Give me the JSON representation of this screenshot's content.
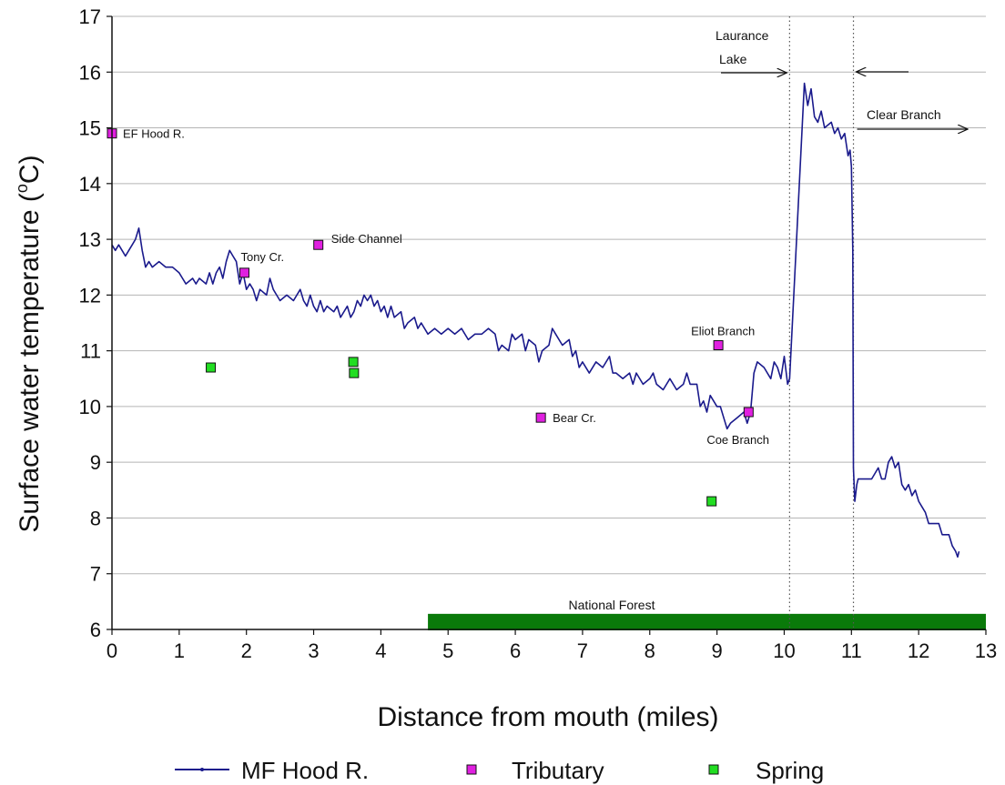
{
  "chart_data": {
    "type": "line",
    "title": "",
    "xlabel": "Distance from mouth (miles)",
    "ylabel": "Surface water temperature (",
    "ylabel_sup": "o",
    "ylabel_tail": "C)",
    "xlim": [
      0,
      13
    ],
    "ylim": [
      6,
      17
    ],
    "x_ticks": [
      0,
      1,
      2,
      3,
      4,
      5,
      6,
      7,
      8,
      9,
      10,
      11,
      12,
      13
    ],
    "y_ticks": [
      6,
      7,
      8,
      9,
      10,
      11,
      12,
      13,
      14,
      15,
      16,
      17
    ],
    "grid": "horizontal",
    "legend_position": "bottom",
    "series": [
      {
        "name": "MF Hood R.",
        "kind": "line",
        "color": "#1a1a8c",
        "points": [
          [
            0.0,
            12.9
          ],
          [
            0.05,
            12.8
          ],
          [
            0.1,
            12.9
          ],
          [
            0.15,
            12.8
          ],
          [
            0.2,
            12.7
          ],
          [
            0.25,
            12.8
          ],
          [
            0.3,
            12.9
          ],
          [
            0.35,
            13.0
          ],
          [
            0.4,
            13.2
          ],
          [
            0.45,
            12.8
          ],
          [
            0.5,
            12.5
          ],
          [
            0.55,
            12.6
          ],
          [
            0.6,
            12.5
          ],
          [
            0.7,
            12.6
          ],
          [
            0.8,
            12.5
          ],
          [
            0.9,
            12.5
          ],
          [
            1.0,
            12.4
          ],
          [
            1.05,
            12.3
          ],
          [
            1.1,
            12.2
          ],
          [
            1.2,
            12.3
          ],
          [
            1.25,
            12.2
          ],
          [
            1.3,
            12.3
          ],
          [
            1.4,
            12.2
          ],
          [
            1.45,
            12.4
          ],
          [
            1.5,
            12.2
          ],
          [
            1.55,
            12.4
          ],
          [
            1.6,
            12.5
          ],
          [
            1.65,
            12.3
          ],
          [
            1.7,
            12.6
          ],
          [
            1.75,
            12.8
          ],
          [
            1.8,
            12.7
          ],
          [
            1.85,
            12.6
          ],
          [
            1.9,
            12.2
          ],
          [
            1.95,
            12.4
          ],
          [
            2.0,
            12.1
          ],
          [
            2.05,
            12.2
          ],
          [
            2.1,
            12.1
          ],
          [
            2.15,
            11.9
          ],
          [
            2.2,
            12.1
          ],
          [
            2.3,
            12.0
          ],
          [
            2.35,
            12.3
          ],
          [
            2.4,
            12.1
          ],
          [
            2.45,
            12.0
          ],
          [
            2.5,
            11.9
          ],
          [
            2.6,
            12.0
          ],
          [
            2.7,
            11.9
          ],
          [
            2.8,
            12.1
          ],
          [
            2.85,
            11.9
          ],
          [
            2.9,
            11.8
          ],
          [
            2.95,
            12.0
          ],
          [
            3.0,
            11.8
          ],
          [
            3.05,
            11.7
          ],
          [
            3.1,
            11.9
          ],
          [
            3.15,
            11.7
          ],
          [
            3.2,
            11.8
          ],
          [
            3.3,
            11.7
          ],
          [
            3.35,
            11.8
          ],
          [
            3.4,
            11.6
          ],
          [
            3.5,
            11.8
          ],
          [
            3.55,
            11.6
          ],
          [
            3.6,
            11.7
          ],
          [
            3.65,
            11.9
          ],
          [
            3.7,
            11.8
          ],
          [
            3.75,
            12.0
          ],
          [
            3.8,
            11.9
          ],
          [
            3.85,
            12.0
          ],
          [
            3.9,
            11.8
          ],
          [
            3.95,
            11.9
          ],
          [
            4.0,
            11.7
          ],
          [
            4.05,
            11.8
          ],
          [
            4.1,
            11.6
          ],
          [
            4.15,
            11.8
          ],
          [
            4.2,
            11.6
          ],
          [
            4.3,
            11.7
          ],
          [
            4.35,
            11.4
          ],
          [
            4.4,
            11.5
          ],
          [
            4.5,
            11.6
          ],
          [
            4.55,
            11.4
          ],
          [
            4.6,
            11.5
          ],
          [
            4.7,
            11.3
          ],
          [
            4.8,
            11.4
          ],
          [
            4.9,
            11.3
          ],
          [
            5.0,
            11.4
          ],
          [
            5.1,
            11.3
          ],
          [
            5.2,
            11.4
          ],
          [
            5.3,
            11.2
          ],
          [
            5.4,
            11.3
          ],
          [
            5.5,
            11.3
          ],
          [
            5.6,
            11.4
          ],
          [
            5.7,
            11.3
          ],
          [
            5.75,
            11.0
          ],
          [
            5.8,
            11.1
          ],
          [
            5.9,
            11.0
          ],
          [
            5.95,
            11.3
          ],
          [
            6.0,
            11.2
          ],
          [
            6.1,
            11.3
          ],
          [
            6.15,
            11.0
          ],
          [
            6.2,
            11.2
          ],
          [
            6.3,
            11.1
          ],
          [
            6.35,
            10.8
          ],
          [
            6.4,
            11.0
          ],
          [
            6.5,
            11.1
          ],
          [
            6.55,
            11.4
          ],
          [
            6.6,
            11.3
          ],
          [
            6.7,
            11.1
          ],
          [
            6.8,
            11.2
          ],
          [
            6.85,
            10.9
          ],
          [
            6.9,
            11.0
          ],
          [
            6.95,
            10.7
          ],
          [
            7.0,
            10.8
          ],
          [
            7.1,
            10.6
          ],
          [
            7.2,
            10.8
          ],
          [
            7.3,
            10.7
          ],
          [
            7.4,
            10.9
          ],
          [
            7.45,
            10.6
          ],
          [
            7.5,
            10.6
          ],
          [
            7.6,
            10.5
          ],
          [
            7.7,
            10.6
          ],
          [
            7.75,
            10.4
          ],
          [
            7.8,
            10.6
          ],
          [
            7.9,
            10.4
          ],
          [
            8.0,
            10.5
          ],
          [
            8.05,
            10.6
          ],
          [
            8.1,
            10.4
          ],
          [
            8.2,
            10.3
          ],
          [
            8.3,
            10.5
          ],
          [
            8.4,
            10.3
          ],
          [
            8.5,
            10.4
          ],
          [
            8.55,
            10.6
          ],
          [
            8.6,
            10.4
          ],
          [
            8.7,
            10.4
          ],
          [
            8.75,
            10.0
          ],
          [
            8.8,
            10.1
          ],
          [
            8.85,
            9.9
          ],
          [
            8.9,
            10.2
          ],
          [
            8.95,
            10.1
          ],
          [
            9.0,
            10.0
          ],
          [
            9.05,
            10.0
          ],
          [
            9.1,
            9.8
          ],
          [
            9.15,
            9.6
          ],
          [
            9.2,
            9.7
          ],
          [
            9.3,
            9.8
          ],
          [
            9.4,
            9.9
          ],
          [
            9.45,
            9.7
          ],
          [
            9.5,
            9.9
          ],
          [
            9.55,
            10.6
          ],
          [
            9.6,
            10.8
          ],
          [
            9.7,
            10.7
          ],
          [
            9.8,
            10.5
          ],
          [
            9.85,
            10.8
          ],
          [
            9.9,
            10.7
          ],
          [
            9.95,
            10.5
          ],
          [
            10.0,
            10.9
          ],
          [
            10.05,
            10.4
          ],
          [
            10.08,
            10.5
          ],
          [
            10.3,
            15.8
          ],
          [
            10.35,
            15.4
          ],
          [
            10.4,
            15.7
          ],
          [
            10.45,
            15.2
          ],
          [
            10.5,
            15.1
          ],
          [
            10.55,
            15.3
          ],
          [
            10.6,
            15.0
          ],
          [
            10.7,
            15.1
          ],
          [
            10.75,
            14.9
          ],
          [
            10.8,
            15.0
          ],
          [
            10.85,
            14.8
          ],
          [
            10.9,
            14.9
          ],
          [
            10.95,
            14.5
          ],
          [
            10.98,
            14.6
          ],
          [
            11.0,
            14.3
          ],
          [
            11.02,
            12.8
          ],
          [
            11.03,
            8.9
          ],
          [
            11.05,
            8.3
          ],
          [
            11.08,
            8.6
          ],
          [
            11.1,
            8.7
          ],
          [
            11.2,
            8.7
          ],
          [
            11.3,
            8.7
          ],
          [
            11.35,
            8.8
          ],
          [
            11.4,
            8.9
          ],
          [
            11.45,
            8.7
          ],
          [
            11.5,
            8.7
          ],
          [
            11.55,
            9.0
          ],
          [
            11.6,
            9.1
          ],
          [
            11.65,
            8.9
          ],
          [
            11.7,
            9.0
          ],
          [
            11.75,
            8.6
          ],
          [
            11.8,
            8.5
          ],
          [
            11.85,
            8.6
          ],
          [
            11.9,
            8.4
          ],
          [
            11.95,
            8.5
          ],
          [
            12.0,
            8.3
          ],
          [
            12.05,
            8.2
          ],
          [
            12.1,
            8.1
          ],
          [
            12.15,
            7.9
          ],
          [
            12.2,
            7.9
          ],
          [
            12.3,
            7.9
          ],
          [
            12.35,
            7.7
          ],
          [
            12.4,
            7.7
          ],
          [
            12.45,
            7.7
          ],
          [
            12.5,
            7.5
          ],
          [
            12.55,
            7.4
          ],
          [
            12.58,
            7.3
          ],
          [
            12.6,
            7.4
          ]
        ]
      },
      {
        "name": "Tributary",
        "kind": "marker",
        "color": "#e020e0",
        "points": [
          [
            0.0,
            14.9,
            "EF Hood R."
          ],
          [
            1.97,
            12.4,
            "Tony Cr."
          ],
          [
            3.07,
            12.9,
            "Side Channel"
          ],
          [
            6.38,
            9.8,
            "Bear Cr."
          ],
          [
            9.02,
            11.1,
            "Eliot  Branch"
          ],
          [
            9.47,
            9.9,
            "Coe Branch"
          ]
        ]
      },
      {
        "name": "Spring",
        "kind": "marker",
        "color": "#22dd22",
        "points": [
          [
            1.47,
            10.7
          ],
          [
            3.59,
            10.8
          ],
          [
            3.6,
            10.6
          ],
          [
            8.92,
            8.3
          ]
        ]
      }
    ],
    "annotations": {
      "laurance_lake_line1": "Laurance",
      "laurance_lake_line2": "Lake",
      "clear_branch": "Clear Branch",
      "national_forest": "National Forest",
      "national_forest_range": [
        4.7,
        13.0
      ],
      "national_forest_color": "#0a7a0a",
      "dotted_lines_x": [
        10.08,
        11.03
      ]
    }
  }
}
